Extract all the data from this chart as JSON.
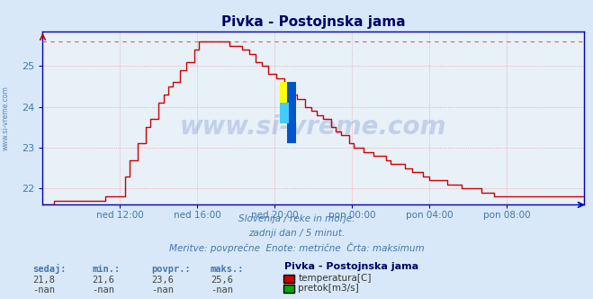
{
  "title": "Pivka - Postojnska jama",
  "bg_color": "#d8e8f8",
  "plot_bg_color": "#e8f0f8",
  "grid_color": "#e8a0a0",
  "line_color": "#cc0000",
  "dashed_line_color": "#e06060",
  "axis_color": "#0000bb",
  "text_color": "#4477aa",
  "title_color": "#000066",
  "x_tick_labels": [
    "ned 12:00",
    "ned 16:00",
    "ned 20:00",
    "pon 00:00",
    "pon 04:00",
    "pon 08:00"
  ],
  "x_tick_positions": [
    144,
    192,
    240,
    288,
    336,
    384
  ],
  "y_ticks": [
    22,
    23,
    24,
    25
  ],
  "ylim": [
    21.6,
    25.85
  ],
  "xlim": [
    96,
    432
  ],
  "max_line_y": 25.6,
  "subtitle_line1": "Slovenija / reke in morje.",
  "subtitle_line2": "zadnji dan / 5 minut.",
  "subtitle_line3": "Meritve: povprečne  Enote: metrične  Črta: maksimum",
  "footer_label1": "sedaj:",
  "footer_label2": "min.:",
  "footer_label3": "povpr.:",
  "footer_label4": "maks.:",
  "footer_val1": "21,8",
  "footer_val2": "21,6",
  "footer_val3": "23,6",
  "footer_val4": "25,6",
  "legend_title": "Pivka - Postojnska jama",
  "legend_entry1": "temperatura[C]",
  "legend_entry2": "pretok[m3/s]",
  "legend_color1": "#cc0000",
  "legend_color2": "#00aa00",
  "watermark": "www.si-vreme.com",
  "left_watermark": "www.si-vreme.com"
}
